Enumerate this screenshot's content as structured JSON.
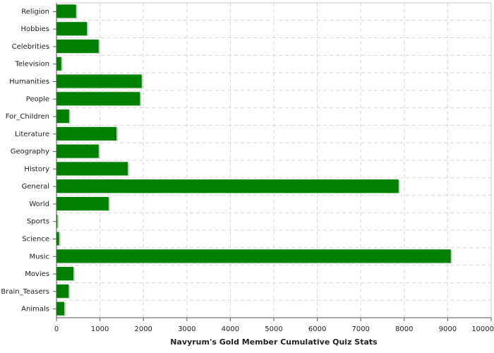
{
  "chart_data": {
    "type": "bar",
    "orientation": "horizontal",
    "title": "Navyrum's Gold Member Cumulative Quiz Stats",
    "categories": [
      "Religion",
      "Hobbies",
      "Celebrities",
      "Television",
      "Humanities",
      "People",
      "For_Children",
      "Literature",
      "Geography",
      "History",
      "General",
      "World",
      "Sports",
      "Science",
      "Music",
      "Movies",
      "Brain_Teasers",
      "Animals"
    ],
    "values": [
      450,
      700,
      970,
      110,
      1960,
      1920,
      290,
      1380,
      970,
      1640,
      7870,
      1200,
      20,
      60,
      9070,
      390,
      280,
      180
    ],
    "color": "#008000",
    "xlim": [
      0,
      10000
    ],
    "xticks": [
      0,
      1000,
      2000,
      3000,
      4000,
      5000,
      6000,
      7000,
      8000,
      9000,
      10000
    ],
    "grid": true
  }
}
